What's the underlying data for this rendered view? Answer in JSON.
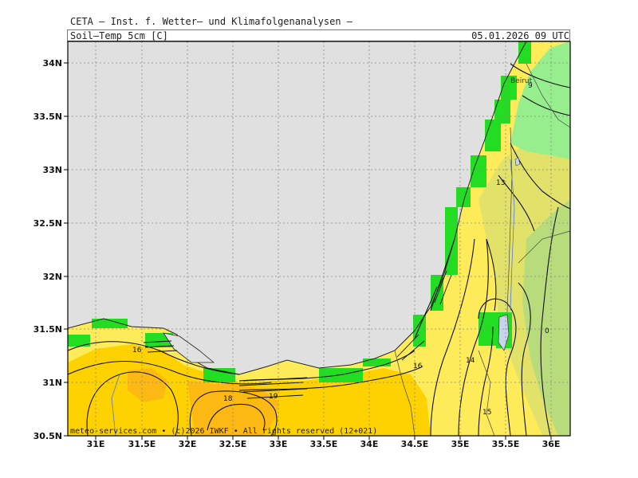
{
  "header": {
    "title": "CETA – Inst. f. Wetter– und Klimafolgenanalysen –",
    "parameter": "Soil–Temp_5cm_[C]",
    "valid_time": "05.01.2026 09 UTC"
  },
  "footer": "meteo-services.com • (c)2026 IWKF • All rights reserved (12+021)",
  "axes": {
    "lat_labels": [
      "34N",
      "33.5N",
      "33N",
      "32.5N",
      "32N",
      "31.5N",
      "31N",
      "30.5N"
    ],
    "lon_labels": [
      "31E",
      "31.5E",
      "32E",
      "32.5E",
      "33E",
      "33.5E",
      "34E",
      "34.5E",
      "35E",
      "35.5E",
      "36E"
    ]
  },
  "contour_labels": [
    "16",
    "18",
    "19",
    "16",
    "14",
    "13",
    "9",
    "15"
  ],
  "places": [
    "Beirut"
  ],
  "colors": {
    "sea": "#e0e0e0",
    "temp_18_plus": "#fdb913",
    "temp_16_18": "#fdd200",
    "temp_14_16": "#feeb5a",
    "temp_12_14": "#e2e26a",
    "temp_10_12": "#b8dc7c",
    "temp_8_10": "#96ef8c",
    "coast_cells": "#22dd22",
    "grid": "#888888"
  }
}
